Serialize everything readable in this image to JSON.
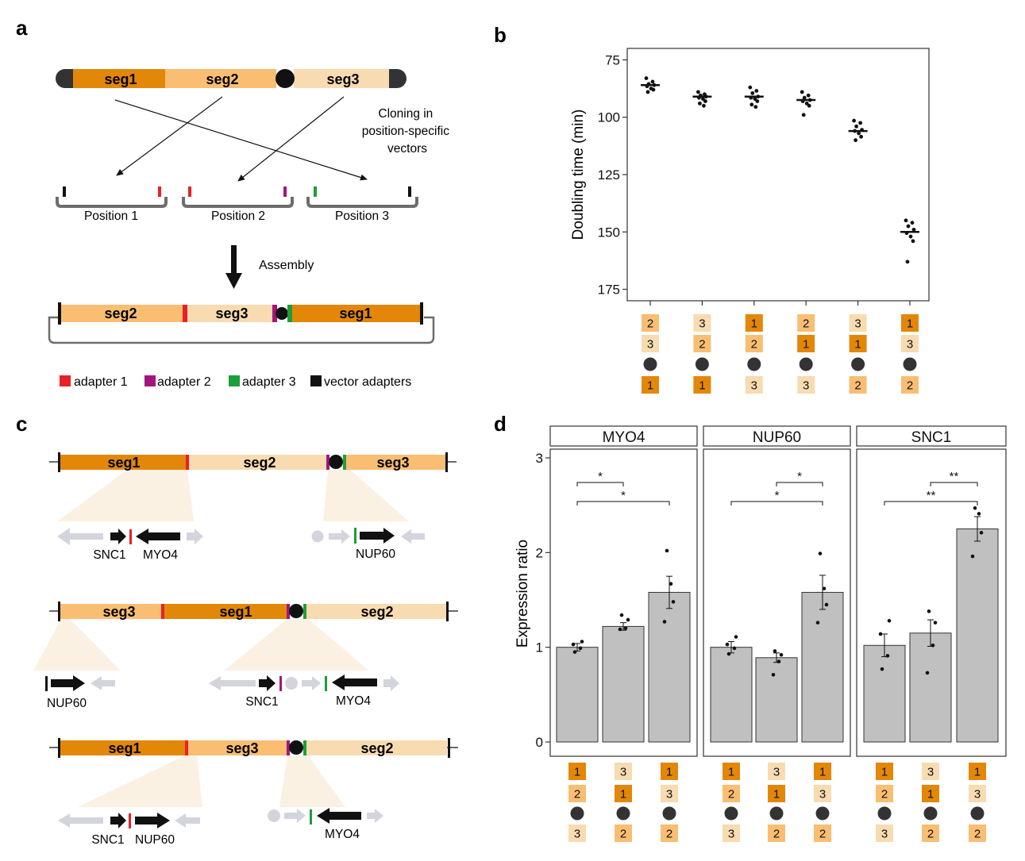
{
  "colors": {
    "seg1": "#E38709",
    "seg2": "#F9BE72",
    "seg3": "#F8DBB0",
    "adapter1": "#E8202A",
    "adapter2": "#A3157E",
    "adapter3": "#1D9E3A",
    "vector": "#111111",
    "bar": "#C0C0C0",
    "gene_faded": "#D4D4DC",
    "panel_fade": "#FBF1E3"
  },
  "panel_a": {
    "label": "a",
    "chromosome_segments": [
      "seg1",
      "seg2",
      "seg3"
    ],
    "cloning_text": [
      "Cloning in",
      "position-specific",
      "vectors"
    ],
    "positions": [
      "Position 1",
      "Position 2",
      "Position 3"
    ],
    "assembly_text": "Assembly",
    "assembled_segments": [
      "seg2",
      "seg3",
      "seg1"
    ],
    "legend": [
      "adapter 1",
      "adapter 2",
      "adapter 3",
      "vector adapters"
    ]
  },
  "panel_b": {
    "label": "b",
    "ylabel": "Doubling time (min)",
    "yticks": [
      "75",
      "100",
      "125",
      "150",
      "175"
    ],
    "configs": [
      [
        "2",
        "3",
        "1"
      ],
      [
        "3",
        "2",
        "1"
      ],
      [
        "1",
        "2",
        "3"
      ],
      [
        "2",
        "1",
        "3"
      ],
      [
        "3",
        "1",
        "2"
      ],
      [
        "1",
        "3",
        "2"
      ]
    ]
  },
  "panel_c": {
    "label": "c",
    "rows": [
      {
        "segments": [
          "seg1",
          "seg2",
          "seg3"
        ],
        "genes": [
          "SNC1",
          "MYO4",
          "NUP60"
        ]
      },
      {
        "segments": [
          "seg3",
          "seg1",
          "seg2"
        ],
        "genes": [
          "NUP60",
          "SNC1",
          "MYO4"
        ]
      },
      {
        "segments": [
          "seg1",
          "seg3",
          "seg2"
        ],
        "genes": [
          "SNC1",
          "NUP60",
          "MYO4"
        ]
      }
    ]
  },
  "panel_d": {
    "label": "d",
    "ylabel": "Expression ratio",
    "yticks": [
      "0",
      "1",
      "2",
      "3"
    ],
    "sig": {
      "one": "*",
      "two": "**"
    },
    "configs": [
      [
        "1",
        "2",
        "3"
      ],
      [
        "3",
        "1",
        "2"
      ],
      [
        "1",
        "3",
        "2"
      ]
    ]
  },
  "chart_data": [
    {
      "type": "scatter",
      "title": "",
      "xlabel": "",
      "ylabel": "Doubling time (min)",
      "ylim": [
        180,
        70
      ],
      "y_reversed": true,
      "categories": [
        "2-3-1",
        "3-2-1",
        "1-2-3",
        "2-1-3",
        "3-1-2",
        "1-3-2"
      ],
      "medians": [
        86,
        91,
        91,
        92.5,
        106,
        150
      ],
      "points": [
        [
          83,
          84.5,
          85.5,
          86,
          86.5,
          87.5,
          88,
          89
        ],
        [
          89,
          90,
          90.5,
          91,
          91.5,
          92,
          93,
          94,
          95
        ],
        [
          87,
          88.5,
          89.5,
          91,
          91.5,
          92,
          93,
          94.5,
          95.5
        ],
        [
          89,
          90.5,
          91.5,
          92.5,
          93,
          94,
          95,
          99
        ],
        [
          101.5,
          102.5,
          104,
          105.5,
          106,
          107,
          108.5,
          110
        ],
        [
          145,
          146,
          147.5,
          149,
          150.5,
          152,
          154,
          163
        ]
      ]
    },
    {
      "type": "bar",
      "title": "",
      "xlabel": "",
      "ylabel": "Expression ratio",
      "ylim": [
        0,
        3.05
      ],
      "categories": [
        "1-2-3",
        "3-1-2",
        "1-3-2"
      ],
      "series": [
        {
          "name": "MYO4",
          "values": [
            1.0,
            1.22,
            1.58
          ],
          "errors": [
            0.04,
            0.04,
            0.17
          ],
          "points": [
            [
              0.95,
              0.99,
              1.03,
              1.06
            ],
            [
              1.19,
              1.2,
              1.29,
              1.34
            ],
            [
              1.27,
              1.48,
              1.67,
              2.02
            ]
          ]
        },
        {
          "name": "NUP60",
          "values": [
            1.0,
            0.89,
            1.58
          ],
          "errors": [
            0.06,
            0.05,
            0.18
          ],
          "points": [
            [
              0.93,
              0.99,
              1.03,
              1.11
            ],
            [
              0.71,
              0.85,
              0.92,
              0.96
            ],
            [
              1.26,
              1.45,
              1.62,
              1.99
            ]
          ]
        },
        {
          "name": "SNC1",
          "values": [
            1.02,
            1.15,
            2.25
          ],
          "errors": [
            0.12,
            0.14,
            0.13
          ],
          "points": [
            [
              0.77,
              0.91,
              1.14,
              1.28
            ],
            [
              0.73,
              1.02,
              1.26,
              1.38
            ],
            [
              1.96,
              2.21,
              2.41,
              2.47
            ]
          ]
        }
      ]
    }
  ]
}
